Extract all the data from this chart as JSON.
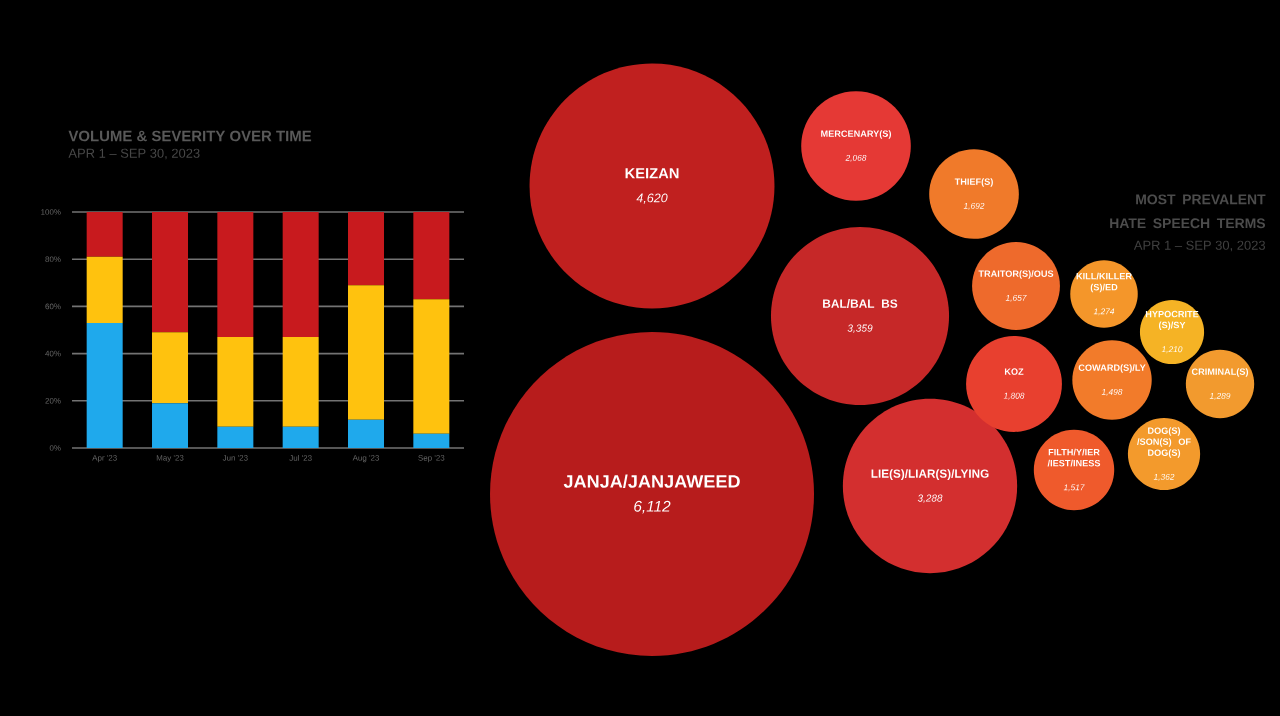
{
  "chart_data": [
    {
      "type": "bar",
      "stacked": true,
      "title": "VOLUME & SEVERITY OVER TIME",
      "subtitle": "APR 1 – SEP 30, 2023",
      "categories": [
        "Apr '23",
        "May '23",
        "Jun '23",
        "Jul '23",
        "Aug '23",
        "Sep '23"
      ],
      "series": [
        {
          "color": "#1fa9ec",
          "values": [
            53,
            19,
            9,
            9,
            12,
            6
          ]
        },
        {
          "color": "#ffc20e",
          "values": [
            28,
            30,
            38,
            38,
            57,
            57
          ]
        },
        {
          "color": "#c81a1e",
          "values": [
            19,
            51,
            53,
            53,
            31,
            37
          ]
        }
      ],
      "ylim": [
        0,
        100
      ],
      "yticks": [
        {
          "value": 0,
          "label": "0%"
        },
        {
          "value": 20,
          "label": "20%"
        },
        {
          "value": 40,
          "label": "40%"
        },
        {
          "value": 60,
          "label": "60%"
        },
        {
          "value": 80,
          "label": "80%"
        },
        {
          "value": 100,
          "label": "100%"
        }
      ],
      "grid": "y"
    },
    {
      "type": "other",
      "title": "MOST PREVALENT HATE SPEECH TERMS",
      "subtitle": "APR 1 – SEP 30, 2023",
      "categories": [
        "JANJA/JANJAWEED",
        "KEIZAN",
        "BAL/BAL BS",
        "LIE(S)/LIAR(S)/LYING",
        "MERCENARY(S)",
        "KOZ",
        "THIEF(S)",
        "TRAITOR(S)/OUS",
        "FILTH/Y/IER/IEST/INESS",
        "COWARD(S)/LY",
        "DOG(S)/SON(S) OF DOG(S)",
        "CRIMINAL(S)",
        "KILL/KILLER(S)/ED",
        "HYPOCRITE(S)/SY"
      ],
      "values": [
        6112,
        4620,
        3359,
        3288,
        2068,
        1808,
        1692,
        1657,
        1517,
        1498,
        1362,
        1289,
        1274,
        1210
      ],
      "value_labels": [
        "6,112",
        "4,620",
        "3,359",
        "3,288",
        "2,068",
        "1,808",
        "1,692",
        "1,657",
        "1,517",
        "1,498",
        "1,362",
        "1,289",
        "1,274",
        "1,210"
      ],
      "colors": [
        "#b71c1c",
        "#c0201f",
        "#c62828",
        "#d32f2f",
        "#e53935",
        "#e8402f",
        "#f07a2a",
        "#ee6a2c",
        "#ef5a2c",
        "#f27b2a",
        "#f39a2c",
        "#f29a2e",
        "#f4962a",
        "#f5b325"
      ]
    }
  ]
}
